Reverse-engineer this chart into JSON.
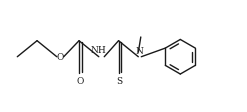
{
  "bg_color": "#ffffff",
  "line_color": "#1a1a1a",
  "line_width": 1.0,
  "font_size": 6.5,
  "figsize": [
    2.47,
    1.13
  ],
  "dpi": 100,
  "xlim": [
    0,
    10
  ],
  "ylim": [
    0,
    4.5
  ]
}
